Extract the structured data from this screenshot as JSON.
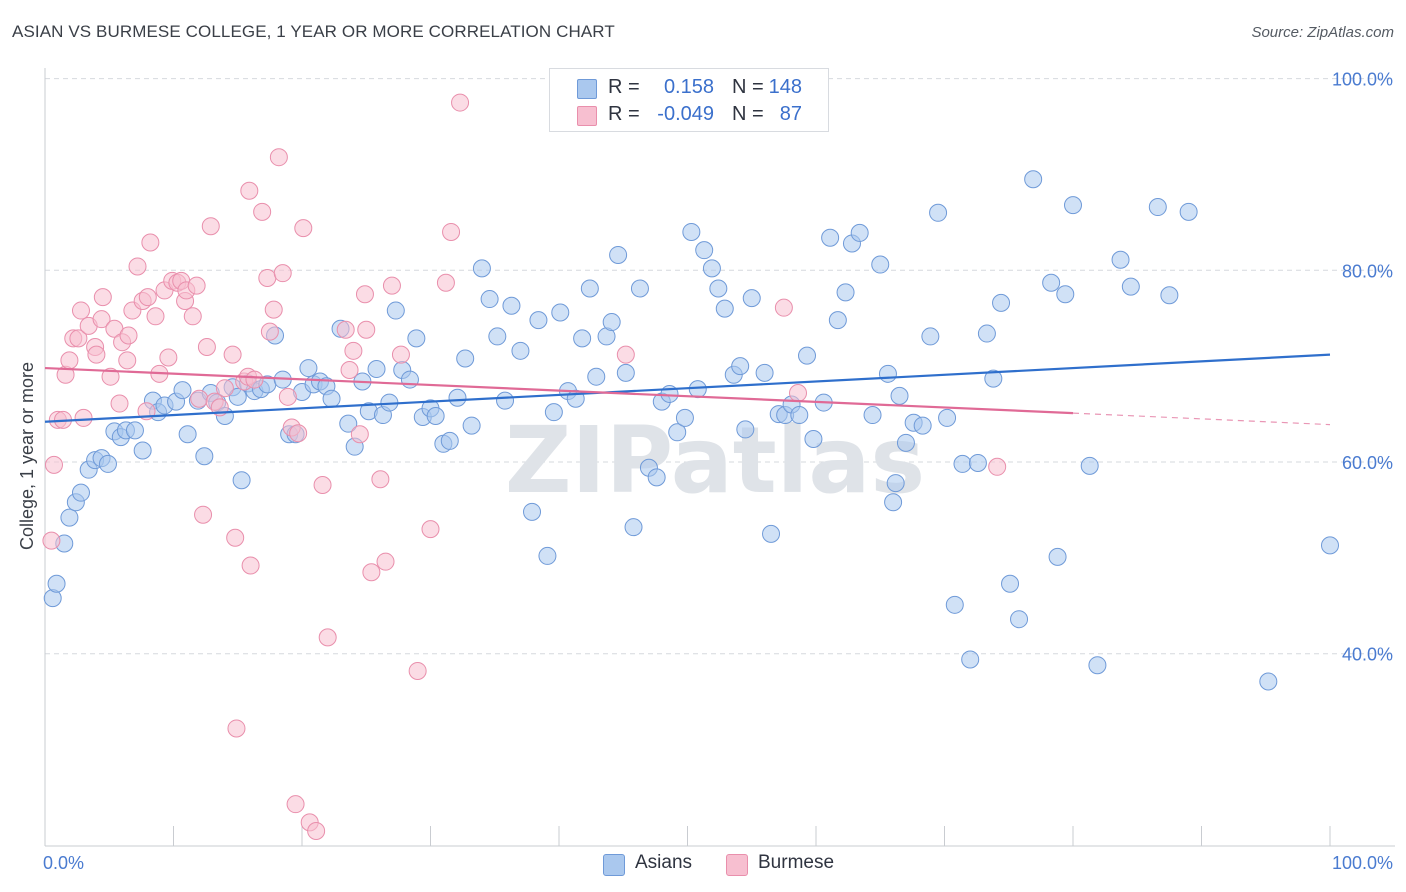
{
  "title": "ASIAN VS BURMESE COLLEGE, 1 YEAR OR MORE CORRELATION CHART",
  "source": "Source: ZipAtlas.com",
  "watermark": "ZIPatlas",
  "colors": {
    "asian_fill": "#aac8ee",
    "asian_stroke": "#6f9ad8",
    "asian_line": "#2f6fcc",
    "burmese_fill": "#f7bfd0",
    "burmese_stroke": "#e98fac",
    "burmese_line": "#e06a96",
    "grid": "#d6d9de",
    "tick_text": "#4a7bd0"
  },
  "legend_top": [
    {
      "series": "asian",
      "r_label": "R =",
      "r_value": "0.158",
      "n_label": "N =",
      "n_value": "148"
    },
    {
      "series": "burmese",
      "r_label": "R =",
      "r_value": "-0.049",
      "n_label": "N =",
      "n_value": "87"
    }
  ],
  "legend_bottom": [
    {
      "series": "asian",
      "label": "Asians"
    },
    {
      "series": "burmese",
      "label": "Burmese"
    }
  ],
  "chart_data": {
    "type": "scatter",
    "title": "ASIAN VS BURMESE COLLEGE, 1 YEAR OR MORE CORRELATION CHART",
    "xlabel": "",
    "ylabel": "College, 1 year or more",
    "xlim": [
      0,
      100
    ],
    "ylim": [
      20,
      102
    ],
    "x_tick_labels": [
      {
        "value": 0,
        "label": "0.0%"
      },
      {
        "value": 100,
        "label": "100.0%"
      }
    ],
    "y_tick_labels": [
      {
        "value": 100,
        "label": "100.0%"
      },
      {
        "value": 80,
        "label": "80.0%"
      },
      {
        "value": 60,
        "label": "60.0%"
      },
      {
        "value": 40,
        "label": "40.0%"
      }
    ],
    "grid": true,
    "legend_position": "top-center",
    "series": [
      {
        "name": "Asians",
        "key": "asian",
        "R": 0.158,
        "N": 148,
        "trend": {
          "x0": 0,
          "y0": 64.2,
          "x1": 100,
          "y1": 71.2
        },
        "points": [
          [
            0.6,
            45.8
          ],
          [
            0.9,
            47.3
          ],
          [
            1.5,
            51.5
          ],
          [
            1.9,
            54.2
          ],
          [
            2.4,
            55.8
          ],
          [
            2.8,
            56.8
          ],
          [
            3.4,
            59.2
          ],
          [
            3.9,
            60.2
          ],
          [
            4.4,
            60.4
          ],
          [
            4.9,
            59.8
          ],
          [
            5.4,
            63.2
          ],
          [
            5.9,
            62.6
          ],
          [
            6.3,
            63.3
          ],
          [
            7.0,
            63.3
          ],
          [
            7.6,
            61.2
          ],
          [
            8.4,
            66.4
          ],
          [
            8.8,
            65.2
          ],
          [
            9.3,
            65.9
          ],
          [
            10.2,
            66.3
          ],
          [
            10.7,
            67.5
          ],
          [
            11.1,
            62.9
          ],
          [
            11.9,
            66.4
          ],
          [
            12.4,
            60.6
          ],
          [
            12.9,
            67.2
          ],
          [
            13.4,
            66.2
          ],
          [
            14.0,
            64.8
          ],
          [
            14.6,
            67.8
          ],
          [
            15.0,
            66.8
          ],
          [
            15.3,
            58.1
          ],
          [
            15.8,
            68.2
          ],
          [
            16.3,
            67.4
          ],
          [
            16.8,
            67.6
          ],
          [
            17.3,
            68.1
          ],
          [
            17.9,
            73.2
          ],
          [
            18.5,
            68.6
          ],
          [
            19.0,
            62.9
          ],
          [
            19.5,
            62.9
          ],
          [
            20.0,
            67.3
          ],
          [
            20.5,
            69.8
          ],
          [
            20.9,
            68.1
          ],
          [
            21.4,
            68.4
          ],
          [
            21.9,
            67.9
          ],
          [
            22.3,
            66.6
          ],
          [
            23.0,
            73.9
          ],
          [
            23.6,
            64.0
          ],
          [
            24.1,
            61.6
          ],
          [
            24.7,
            68.4
          ],
          [
            25.2,
            65.3
          ],
          [
            25.8,
            69.7
          ],
          [
            26.3,
            64.9
          ],
          [
            26.8,
            66.2
          ],
          [
            27.3,
            75.8
          ],
          [
            27.8,
            69.6
          ],
          [
            28.4,
            68.6
          ],
          [
            28.9,
            72.9
          ],
          [
            29.4,
            64.7
          ],
          [
            30.0,
            65.6
          ],
          [
            30.4,
            64.8
          ],
          [
            31.0,
            61.9
          ],
          [
            31.5,
            62.2
          ],
          [
            32.1,
            66.7
          ],
          [
            32.7,
            70.8
          ],
          [
            33.2,
            63.8
          ],
          [
            34.0,
            80.2
          ],
          [
            34.6,
            77.0
          ],
          [
            35.2,
            73.1
          ],
          [
            35.8,
            66.4
          ],
          [
            36.3,
            76.3
          ],
          [
            37.0,
            71.6
          ],
          [
            37.9,
            54.8
          ],
          [
            38.4,
            74.8
          ],
          [
            39.1,
            50.2
          ],
          [
            39.6,
            65.2
          ],
          [
            40.1,
            75.6
          ],
          [
            40.7,
            67.4
          ],
          [
            41.3,
            66.6
          ],
          [
            41.8,
            72.9
          ],
          [
            42.4,
            78.1
          ],
          [
            42.9,
            68.9
          ],
          [
            43.7,
            73.1
          ],
          [
            44.1,
            74.6
          ],
          [
            44.6,
            81.6
          ],
          [
            45.2,
            69.3
          ],
          [
            45.8,
            53.2
          ],
          [
            46.3,
            78.1
          ],
          [
            47.0,
            59.4
          ],
          [
            47.6,
            58.4
          ],
          [
            48.0,
            66.3
          ],
          [
            48.6,
            67.1
          ],
          [
            49.2,
            63.1
          ],
          [
            49.8,
            64.6
          ],
          [
            50.3,
            84.0
          ],
          [
            50.8,
            67.6
          ],
          [
            51.3,
            82.1
          ],
          [
            51.9,
            80.2
          ],
          [
            52.4,
            78.1
          ],
          [
            52.9,
            76.0
          ],
          [
            53.6,
            69.1
          ],
          [
            54.1,
            70.0
          ],
          [
            54.5,
            63.4
          ],
          [
            55.0,
            77.1
          ],
          [
            56.0,
            69.3
          ],
          [
            56.5,
            52.5
          ],
          [
            57.1,
            65.0
          ],
          [
            57.6,
            64.9
          ],
          [
            58.1,
            66.0
          ],
          [
            58.7,
            64.9
          ],
          [
            59.3,
            71.1
          ],
          [
            59.8,
            62.4
          ],
          [
            60.6,
            66.2
          ],
          [
            61.1,
            83.4
          ],
          [
            61.7,
            74.8
          ],
          [
            62.3,
            77.7
          ],
          [
            62.8,
            82.8
          ],
          [
            63.4,
            83.9
          ],
          [
            64.4,
            64.9
          ],
          [
            65.0,
            80.6
          ],
          [
            65.6,
            69.2
          ],
          [
            66.0,
            55.8
          ],
          [
            66.2,
            57.8
          ],
          [
            66.5,
            66.9
          ],
          [
            67.0,
            62.0
          ],
          [
            67.6,
            64.1
          ],
          [
            68.3,
            63.8
          ],
          [
            68.9,
            73.1
          ],
          [
            69.5,
            86.0
          ],
          [
            70.2,
            64.6
          ],
          [
            70.8,
            45.1
          ],
          [
            71.4,
            59.8
          ],
          [
            72.0,
            39.4
          ],
          [
            72.6,
            59.9
          ],
          [
            73.3,
            73.4
          ],
          [
            73.8,
            68.7
          ],
          [
            74.4,
            76.6
          ],
          [
            75.1,
            47.3
          ],
          [
            75.8,
            43.6
          ],
          [
            76.9,
            89.5
          ],
          [
            78.3,
            78.7
          ],
          [
            78.8,
            50.1
          ],
          [
            79.4,
            77.5
          ],
          [
            80.0,
            86.8
          ],
          [
            81.3,
            59.6
          ],
          [
            81.9,
            38.8
          ],
          [
            83.7,
            81.1
          ],
          [
            84.5,
            78.3
          ],
          [
            86.6,
            86.6
          ],
          [
            87.5,
            77.4
          ],
          [
            89.0,
            86.1
          ],
          [
            95.2,
            37.1
          ],
          [
            100.0,
            51.3
          ]
        ]
      },
      {
        "name": "Burmese",
        "key": "burmese",
        "R": -0.049,
        "N": 87,
        "trend": {
          "x0": 0,
          "y0": 69.8,
          "x1": 80,
          "y1": 65.1
        },
        "trend_dashed_to": {
          "x1": 100,
          "y1": 63.9
        },
        "points": [
          [
            0.5,
            51.8
          ],
          [
            0.7,
            59.7
          ],
          [
            1.0,
            64.4
          ],
          [
            1.4,
            64.4
          ],
          [
            1.6,
            69.1
          ],
          [
            1.9,
            70.6
          ],
          [
            2.2,
            72.9
          ],
          [
            2.6,
            72.9
          ],
          [
            2.8,
            75.8
          ],
          [
            3.0,
            64.6
          ],
          [
            3.4,
            74.2
          ],
          [
            3.9,
            72.0
          ],
          [
            4.0,
            71.2
          ],
          [
            4.4,
            74.9
          ],
          [
            4.5,
            77.2
          ],
          [
            5.1,
            68.9
          ],
          [
            5.4,
            73.9
          ],
          [
            5.8,
            66.1
          ],
          [
            6.0,
            72.5
          ],
          [
            6.4,
            70.6
          ],
          [
            6.5,
            73.2
          ],
          [
            6.8,
            75.8
          ],
          [
            7.2,
            80.4
          ],
          [
            7.6,
            76.8
          ],
          [
            7.9,
            65.3
          ],
          [
            8.0,
            77.2
          ],
          [
            8.2,
            82.9
          ],
          [
            8.6,
            75.2
          ],
          [
            8.9,
            69.2
          ],
          [
            9.3,
            77.9
          ],
          [
            9.6,
            70.9
          ],
          [
            9.9,
            78.9
          ],
          [
            10.3,
            78.7
          ],
          [
            10.6,
            78.9
          ],
          [
            10.9,
            76.8
          ],
          [
            11.0,
            77.9
          ],
          [
            11.5,
            75.2
          ],
          [
            11.8,
            78.4
          ],
          [
            12.0,
            66.6
          ],
          [
            12.3,
            54.5
          ],
          [
            12.6,
            72.0
          ],
          [
            12.9,
            84.6
          ],
          [
            13.2,
            66.3
          ],
          [
            13.6,
            65.7
          ],
          [
            14.0,
            67.7
          ],
          [
            14.6,
            71.2
          ],
          [
            14.8,
            52.1
          ],
          [
            14.9,
            32.2
          ],
          [
            15.5,
            68.4
          ],
          [
            15.8,
            68.9
          ],
          [
            15.9,
            88.3
          ],
          [
            16.0,
            49.2
          ],
          [
            16.3,
            68.6
          ],
          [
            16.9,
            86.1
          ],
          [
            17.3,
            79.2
          ],
          [
            17.5,
            73.6
          ],
          [
            17.8,
            75.9
          ],
          [
            18.2,
            91.8
          ],
          [
            18.5,
            79.7
          ],
          [
            18.9,
            66.8
          ],
          [
            19.2,
            63.6
          ],
          [
            19.5,
            24.3
          ],
          [
            19.7,
            63.0
          ],
          [
            20.1,
            84.4
          ],
          [
            20.6,
            22.4
          ],
          [
            21.1,
            21.5
          ],
          [
            21.6,
            57.6
          ],
          [
            22.0,
            41.7
          ],
          [
            23.4,
            73.8
          ],
          [
            23.7,
            69.6
          ],
          [
            24.0,
            71.6
          ],
          [
            24.5,
            62.9
          ],
          [
            24.9,
            77.5
          ],
          [
            25.0,
            73.8
          ],
          [
            25.4,
            48.5
          ],
          [
            26.1,
            58.2
          ],
          [
            26.5,
            49.6
          ],
          [
            27.0,
            78.4
          ],
          [
            27.7,
            71.2
          ],
          [
            29.0,
            38.2
          ],
          [
            30.0,
            53.0
          ],
          [
            31.2,
            78.7
          ],
          [
            31.6,
            84.0
          ],
          [
            32.3,
            97.5
          ],
          [
            45.2,
            71.2
          ],
          [
            48.0,
            99.8
          ],
          [
            57.5,
            76.1
          ],
          [
            58.6,
            67.2
          ],
          [
            74.1,
            59.5
          ]
        ]
      }
    ]
  }
}
